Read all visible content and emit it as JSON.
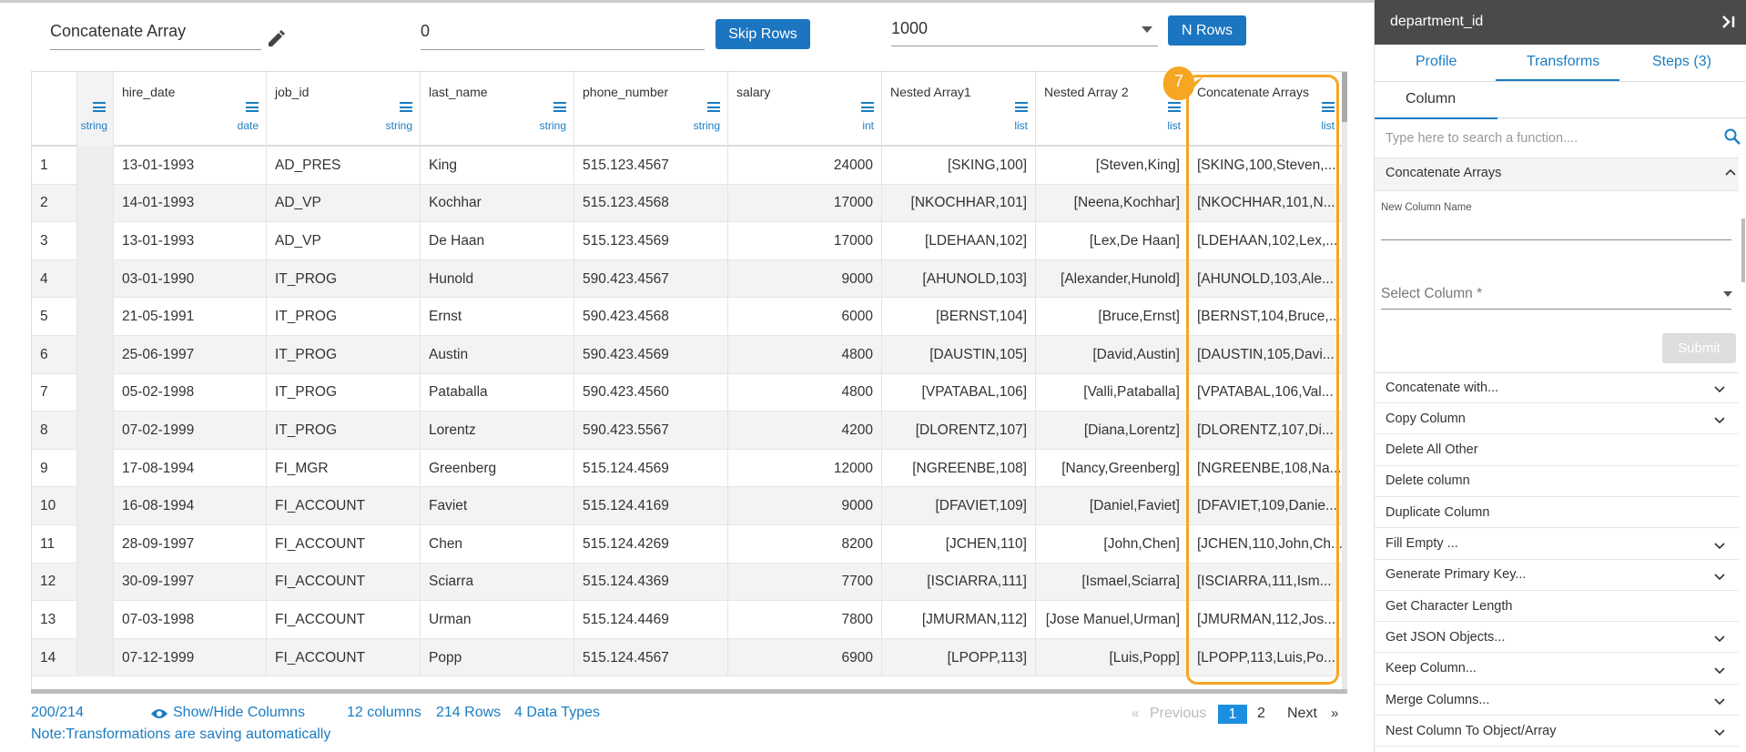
{
  "toolbar": {
    "transform_name": "Concatenate Array",
    "skip_rows": "0",
    "skip_button": "Skip Rows",
    "n_rows": "1000",
    "n_rows_button": "N Rows"
  },
  "table": {
    "columns": [
      {
        "type": "string"
      },
      {
        "name": "hire_date",
        "type": "date"
      },
      {
        "name": "job_id",
        "type": "string"
      },
      {
        "name": "last_name",
        "type": "string"
      },
      {
        "name": "phone_number",
        "type": "string"
      },
      {
        "name": "salary",
        "type": "int"
      },
      {
        "name": "Nested Array1",
        "type": "list"
      },
      {
        "name": "Nested Array 2",
        "type": "list"
      },
      {
        "name": "Concatenate Arrays",
        "type": "list"
      }
    ],
    "rows": [
      {
        "n": "1",
        "cells": [
          "13-01-1993",
          "AD_PRES",
          "King",
          "515.123.4567",
          "24000",
          "[SKING,100]",
          "[Steven,King]",
          "[SKING,100,Steven,..."
        ]
      },
      {
        "n": "2",
        "cells": [
          "14-01-1993",
          "AD_VP",
          "Kochhar",
          "515.123.4568",
          "17000",
          "[NKOCHHAR,101]",
          "[Neena,Kochhar]",
          "[NKOCHHAR,101,N..."
        ]
      },
      {
        "n": "3",
        "cells": [
          "13-01-1993",
          "AD_VP",
          "De Haan",
          "515.123.4569",
          "17000",
          "[LDEHAAN,102]",
          "[Lex,De Haan]",
          "[LDEHAAN,102,Lex,..."
        ]
      },
      {
        "n": "4",
        "cells": [
          "03-01-1990",
          "IT_PROG",
          "Hunold",
          "590.423.4567",
          "9000",
          "[AHUNOLD,103]",
          "[Alexander,Hunold]",
          "[AHUNOLD,103,Ale..."
        ]
      },
      {
        "n": "5",
        "cells": [
          "21-05-1991",
          "IT_PROG",
          "Ernst",
          "590.423.4568",
          "6000",
          "[BERNST,104]",
          "[Bruce,Ernst]",
          "[BERNST,104,Bruce,..."
        ]
      },
      {
        "n": "6",
        "cells": [
          "25-06-1997",
          "IT_PROG",
          "Austin",
          "590.423.4569",
          "4800",
          "[DAUSTIN,105]",
          "[David,Austin]",
          "[DAUSTIN,105,Davi..."
        ]
      },
      {
        "n": "7",
        "cells": [
          "05-02-1998",
          "IT_PROG",
          "Pataballa",
          "590.423.4560",
          "4800",
          "[VPATABAL,106]",
          "[Valli,Pataballa]",
          "[VPATABAL,106,Val..."
        ]
      },
      {
        "n": "8",
        "cells": [
          "07-02-1999",
          "IT_PROG",
          "Lorentz",
          "590.423.5567",
          "4200",
          "[DLORENTZ,107]",
          "[Diana,Lorentz]",
          "[DLORENTZ,107,Di..."
        ]
      },
      {
        "n": "9",
        "cells": [
          "17-08-1994",
          "FI_MGR",
          "Greenberg",
          "515.124.4569",
          "12000",
          "[NGREENBE,108]",
          "[Nancy,Greenberg]",
          "[NGREENBE,108,Na..."
        ]
      },
      {
        "n": "10",
        "cells": [
          "16-08-1994",
          "FI_ACCOUNT",
          "Faviet",
          "515.124.4169",
          "9000",
          "[DFAVIET,109]",
          "[Daniel,Faviet]",
          "[DFAVIET,109,Danie..."
        ]
      },
      {
        "n": "11",
        "cells": [
          "28-09-1997",
          "FI_ACCOUNT",
          "Chen",
          "515.124.4269",
          "8200",
          "[JCHEN,110]",
          "[John,Chen]",
          "[JCHEN,110,John,Ch..."
        ]
      },
      {
        "n": "12",
        "cells": [
          "30-09-1997",
          "FI_ACCOUNT",
          "Sciarra",
          "515.124.4369",
          "7700",
          "[ISCIARRA,111]",
          "[Ismael,Sciarra]",
          "[ISCIARRA,111,Ism..."
        ]
      },
      {
        "n": "13",
        "cells": [
          "07-03-1998",
          "FI_ACCOUNT",
          "Urman",
          "515.124.4469",
          "7800",
          "[JMURMAN,112]",
          "[Jose Manuel,Urman]",
          "[JMURMAN,112,Jos..."
        ]
      },
      {
        "n": "14",
        "cells": [
          "07-12-1999",
          "FI_ACCOUNT",
          "Popp",
          "515.124.4567",
          "6900",
          "[LPOPP,113]",
          "[Luis,Popp]",
          "[LPOPP,113,Luis,Po..."
        ]
      }
    ]
  },
  "callout": "7",
  "footer": {
    "count": "200/214",
    "show_hide": "Show/Hide Columns",
    "columns": "12 columns",
    "rows": "214 Rows",
    "types": "4 Data Types",
    "first": "«",
    "previous": "Previous",
    "page1": "1",
    "page2": "2",
    "next": "Next",
    "last": "»",
    "note": "Note:Transformations are saving automatically"
  },
  "panel": {
    "title": "department_id",
    "tabs": [
      "Profile",
      "Transforms",
      "Steps (3)"
    ],
    "subtab": "Column",
    "search": "Type here to search a function....",
    "section": "Concatenate Arrays",
    "new_column_label": "New Column Name",
    "select_column": "Select Column *",
    "submit": "Submit",
    "items": [
      {
        "label": "Concatenate with...",
        "expandable": true
      },
      {
        "label": "Copy Column",
        "expandable": true
      },
      {
        "label": "Delete All Other",
        "expandable": false
      },
      {
        "label": "Delete column",
        "expandable": false
      },
      {
        "label": "Duplicate Column",
        "expandable": false
      },
      {
        "label": "Fill Empty ...",
        "expandable": true
      },
      {
        "label": "Generate Primary Key...",
        "expandable": true
      },
      {
        "label": "Get Character Length",
        "expandable": false
      },
      {
        "label": "Get JSON Objects...",
        "expandable": true
      },
      {
        "label": "Keep Column...",
        "expandable": true
      },
      {
        "label": "Merge Columns...",
        "expandable": true
      },
      {
        "label": "Nest Column To Object/Array",
        "expandable": true
      }
    ]
  }
}
